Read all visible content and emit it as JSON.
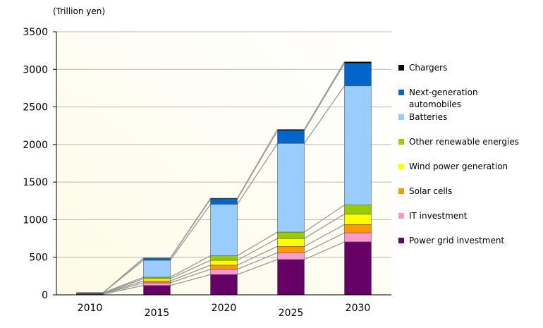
{
  "chart_data": {
    "type": "bar",
    "stacked": true,
    "unit_label": "(Trillion yen)",
    "categories": [
      "2010",
      "2015",
      "2020",
      "2025",
      "2030"
    ],
    "ylim": [
      0,
      3500
    ],
    "yticks": [
      0,
      500,
      1000,
      1500,
      2000,
      2500,
      3000,
      3500
    ],
    "grid": true,
    "legend_position": "right",
    "series": [
      {
        "name": "Power grid investment",
        "color": "#660066",
        "values": [
          10,
          125,
          270,
          470,
          705
        ]
      },
      {
        "name": "IT investment",
        "color": "#ff99cc",
        "values": [
          5,
          35,
          70,
          90,
          120
        ]
      },
      {
        "name": "Solar cells",
        "color": "#ff9900",
        "values": [
          5,
          25,
          55,
          85,
          110
        ]
      },
      {
        "name": "Wind power generation",
        "color": "#ffff00",
        "values": [
          5,
          30,
          65,
          105,
          140
        ]
      },
      {
        "name": "Other renewable energies",
        "color": "#99cc00",
        "values": [
          5,
          20,
          60,
          85,
          120
        ]
      },
      {
        "name": "Batteries",
        "color": "#99ccff",
        "values": [
          0,
          225,
          685,
          1180,
          1585
        ]
      },
      {
        "name": "Next-generation automobiles",
        "color": "#0066cc",
        "values": [
          0,
          25,
          70,
          170,
          300
        ]
      },
      {
        "name": "Chargers",
        "color": "#000000",
        "values": [
          0,
          5,
          10,
          15,
          20
        ]
      }
    ]
  }
}
